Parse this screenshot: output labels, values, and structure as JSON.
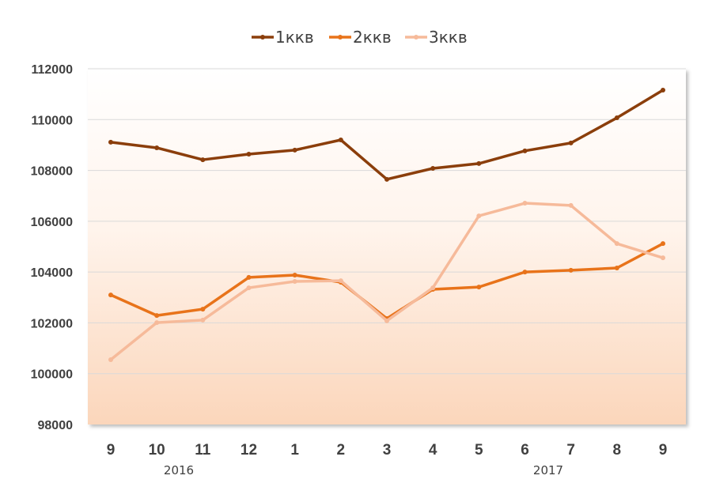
{
  "chart_data": {
    "type": "line",
    "title": "",
    "xlabel": "",
    "ylabel": "",
    "ylim": [
      98000,
      112000
    ],
    "yticks": [
      98000,
      100000,
      102000,
      104000,
      106000,
      108000,
      110000,
      112000
    ],
    "grid": true,
    "legend_position": "top-center",
    "categories": [
      "9",
      "10",
      "11",
      "12",
      "1",
      "2",
      "3",
      "4",
      "5",
      "6",
      "7",
      "8",
      "9"
    ],
    "year_groups": [
      {
        "label": "2016",
        "start": 0,
        "end": 3
      },
      {
        "label": "2017",
        "start": 4,
        "end": 12
      }
    ],
    "series": [
      {
        "name": "1ккв",
        "color": "#8B3E0B",
        "values": [
          109110,
          108890,
          108420,
          108640,
          108800,
          109200,
          107650,
          108080,
          108270,
          108770,
          109080,
          110070,
          111160
        ]
      },
      {
        "name": "2ккв",
        "color": "#E8731A",
        "values": [
          103100,
          102290,
          102540,
          103790,
          103880,
          103600,
          102170,
          103320,
          103410,
          104000,
          104070,
          104160,
          105120
        ]
      },
      {
        "name": "3ккв",
        "color": "#F6BA9A",
        "values": [
          100550,
          102010,
          102110,
          103380,
          103630,
          103660,
          102080,
          103380,
          106210,
          106710,
          106620,
          105120,
          104560
        ]
      }
    ]
  }
}
